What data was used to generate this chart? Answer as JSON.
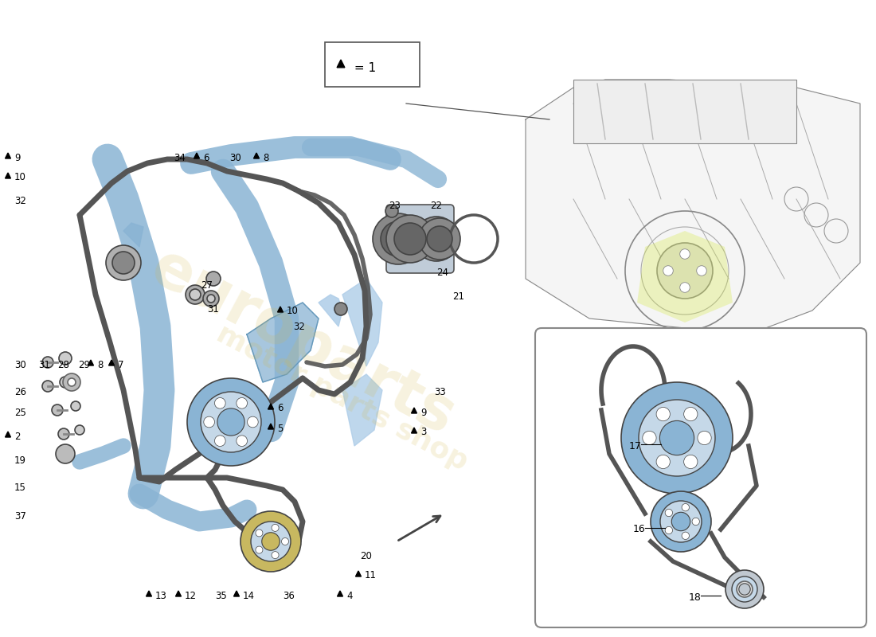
{
  "background_color": "#ffffff",
  "legend_text": "▲ = 1",
  "blue_part": "#8ab4d4",
  "blue_light": "#aecde8",
  "chain_color": "#555555",
  "gear_color": "#888888",
  "watermark1": "europarts",
  "watermark2": "motor parts shop",
  "watermark_color": "#d4b84a",
  "fig_width": 11.0,
  "fig_height": 8.0,
  "dpi": 100
}
